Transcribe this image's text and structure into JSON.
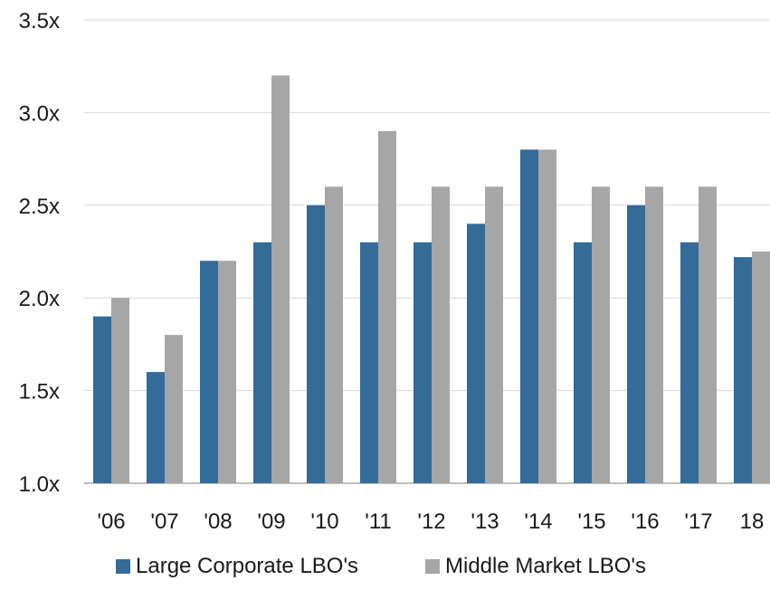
{
  "chart_data": {
    "type": "bar",
    "title": "",
    "xlabel": "",
    "ylabel": "",
    "categories": [
      "'06",
      "'07",
      "'08",
      "'09",
      "'10",
      "'11",
      "'12",
      "'13",
      "'14",
      "'15",
      "'16",
      "'17",
      "18"
    ],
    "series": [
      {
        "name": "Large Corporate LBO's",
        "color": "#336b99",
        "values": [
          1.9,
          1.6,
          2.2,
          2.3,
          2.5,
          2.3,
          2.3,
          2.4,
          2.8,
          2.3,
          2.5,
          2.3,
          2.22
        ]
      },
      {
        "name": "Middle Market LBO's",
        "color": "#a6a6a6",
        "values": [
          2.0,
          1.8,
          2.2,
          3.2,
          2.6,
          2.9,
          2.6,
          2.6,
          2.8,
          2.6,
          2.6,
          2.6,
          2.25
        ]
      }
    ],
    "ylim": [
      1.0,
      3.5
    ],
    "yticks": [
      1.0,
      1.5,
      2.0,
      2.5,
      3.0,
      3.5
    ],
    "ytick_labels": [
      "1.0x",
      "1.5x",
      "2.0x",
      "2.5x",
      "3.0x",
      "3.5x"
    ],
    "grid": true,
    "legend_position": "bottom"
  }
}
